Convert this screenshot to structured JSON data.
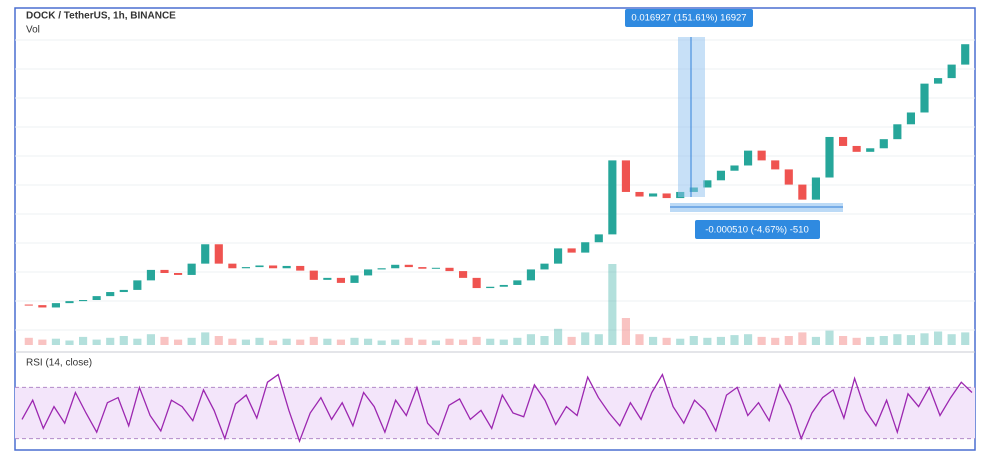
{
  "chart_data": {
    "type": "candlestick",
    "title": "DOCK / TetherUS, 1h, BINANCE",
    "log": true,
    "grid": true,
    "ylim": [
      0.00475,
      0.0329
    ],
    "up_color": "#26a69a",
    "down_color": "#ef5350",
    "open": [
      0.006,
      0.00598,
      0.0059,
      0.00605,
      0.00612,
      0.00616,
      0.0063,
      0.00645,
      0.00653,
      0.0069,
      0.00733,
      0.0072,
      0.00712,
      0.0076,
      0.0085,
      0.0076,
      0.0074,
      0.00745,
      0.00752,
      0.0074,
      0.0075,
      0.0073,
      0.00692,
      0.007,
      0.0068,
      0.0071,
      0.00735,
      0.0074,
      0.00755,
      0.00745,
      0.00738,
      0.00742,
      0.00728,
      0.007,
      0.0066,
      0.00665,
      0.00672,
      0.0069,
      0.00735,
      0.0076,
      0.0083,
      0.0081,
      0.0086,
      0.009,
      0.0138,
      0.0115,
      0.0112,
      0.0114,
      0.0111,
      0.0115,
      0.0118,
      0.0123,
      0.013,
      0.0134,
      0.0146,
      0.0138,
      0.0131,
      0.012,
      0.011,
      0.0125,
      0.0158,
      0.015,
      0.0145,
      0.0148,
      0.0156,
      0.017,
      0.0182,
      0.0215,
      0.0222,
      0.024
    ],
    "close": [
      0.00598,
      0.0059,
      0.00605,
      0.00612,
      0.00616,
      0.0063,
      0.00645,
      0.00653,
      0.0069,
      0.00733,
      0.0072,
      0.00712,
      0.0076,
      0.0085,
      0.0076,
      0.0074,
      0.00745,
      0.00752,
      0.0074,
      0.0075,
      0.0073,
      0.00692,
      0.007,
      0.0068,
      0.0071,
      0.00735,
      0.0074,
      0.00755,
      0.00745,
      0.00738,
      0.00742,
      0.00728,
      0.007,
      0.0066,
      0.00665,
      0.00672,
      0.0069,
      0.00735,
      0.0076,
      0.0083,
      0.0081,
      0.0086,
      0.009,
      0.0138,
      0.0115,
      0.0112,
      0.0114,
      0.0111,
      0.0115,
      0.0118,
      0.0123,
      0.013,
      0.0134,
      0.0146,
      0.0138,
      0.0131,
      0.012,
      0.011,
      0.0125,
      0.0158,
      0.015,
      0.0145,
      0.0148,
      0.0156,
      0.017,
      0.0182,
      0.0215,
      0.0222,
      0.024,
      0.027
    ],
    "volume": {
      "name": "Vol",
      "ylim": [
        0,
        100
      ],
      "values": [
        8,
        6,
        7,
        5,
        9,
        6,
        8,
        10,
        7,
        12,
        9,
        6,
        8,
        14,
        10,
        7,
        6,
        8,
        5,
        7,
        6,
        9,
        7,
        6,
        8,
        7,
        5,
        6,
        8,
        6,
        5,
        7,
        6,
        9,
        7,
        6,
        8,
        12,
        10,
        18,
        9,
        14,
        12,
        90,
        30,
        12,
        9,
        8,
        7,
        10,
        8,
        9,
        11,
        12,
        9,
        8,
        10,
        14,
        9,
        16,
        10,
        8,
        9,
        10,
        12,
        11,
        13,
        15,
        12,
        14
      ]
    },
    "annotations": [
      "0.016927 (151.61%) 16927",
      "-0.000510 (-4.67%) -510"
    ],
    "rsi": {
      "name": "RSI (14, close)",
      "color": "#9c27b0",
      "ylim": [
        25,
        82
      ],
      "band": [
        30,
        70
      ],
      "values": [
        45,
        60,
        38,
        55,
        42,
        66,
        50,
        35,
        58,
        62,
        40,
        70,
        48,
        36,
        60,
        55,
        44,
        68,
        52,
        30,
        57,
        64,
        46,
        74,
        80,
        52,
        28,
        50,
        62,
        45,
        58,
        40,
        66,
        55,
        35,
        60,
        48,
        70,
        42,
        33,
        56,
        61,
        45,
        52,
        38,
        64,
        50,
        47,
        72,
        60,
        41,
        55,
        48,
        78,
        62,
        50,
        40,
        58,
        45,
        66,
        80,
        55,
        42,
        60,
        52,
        36,
        64,
        70,
        48,
        58,
        44,
        72,
        56,
        30,
        50,
        62,
        68,
        46,
        77,
        52,
        40,
        60,
        35,
        65,
        55,
        70,
        48,
        62,
        74,
        66
      ]
    }
  }
}
